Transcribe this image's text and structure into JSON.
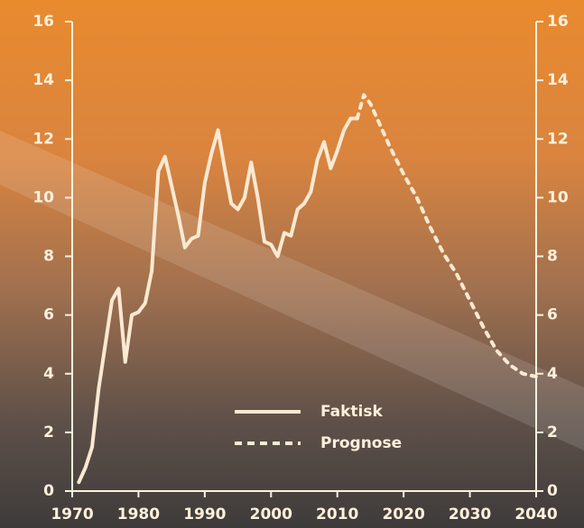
{
  "chart_data": {
    "type": "line",
    "series": [
      {
        "name": "Faktisk",
        "color": "#fbe9d2",
        "dash": false,
        "x": [
          1971,
          1972,
          1973,
          1974,
          1975,
          1976,
          1977,
          1978,
          1979,
          1980,
          1981,
          1982,
          1983,
          1984,
          1985,
          1986,
          1987,
          1988,
          1989,
          1990,
          1991,
          1992,
          1993,
          1994,
          1995,
          1996,
          1997,
          1998,
          1999,
          2000,
          2001,
          2002,
          2003,
          2004,
          2005,
          2006,
          2007,
          2008,
          2009,
          2010,
          2011,
          2012,
          2013
        ],
        "values": [
          0.3,
          0.8,
          1.5,
          3.5,
          5.0,
          6.5,
          6.9,
          4.4,
          6.0,
          6.1,
          6.4,
          7.5,
          10.9,
          11.4,
          10.4,
          9.4,
          8.3,
          8.6,
          8.7,
          10.5,
          11.5,
          12.3,
          11.0,
          9.8,
          9.6,
          10.0,
          11.2,
          10.0,
          8.5,
          8.4,
          8.0,
          8.8,
          8.7,
          9.6,
          9.8,
          10.2,
          11.3,
          11.9,
          11.0,
          11.6,
          12.3,
          12.7,
          12.7
        ]
      },
      {
        "name": "Prognose",
        "color": "#fbe9d2",
        "dash": true,
        "x": [
          2013,
          2014,
          2015,
          2016,
          2018,
          2020,
          2022,
          2024,
          2026,
          2028,
          2030,
          2032,
          2034,
          2036,
          2038,
          2040
        ],
        "values": [
          12.7,
          13.5,
          13.2,
          12.7,
          11.7,
          10.8,
          10.0,
          9.0,
          8.1,
          7.4,
          6.5,
          5.6,
          4.8,
          4.3,
          4.0,
          3.9
        ]
      }
    ],
    "xlim": [
      1970,
      2040
    ],
    "xticks": [
      1970,
      1980,
      1990,
      2000,
      2010,
      2020,
      2030,
      2040
    ],
    "ylim": [
      0,
      16
    ],
    "yticks": [
      0,
      2,
      4,
      6,
      8,
      10,
      12,
      14,
      16
    ],
    "y2lim": [
      0,
      16
    ],
    "y2ticks": [
      0,
      2,
      4,
      6,
      8,
      10,
      12,
      14,
      16
    ]
  }
}
